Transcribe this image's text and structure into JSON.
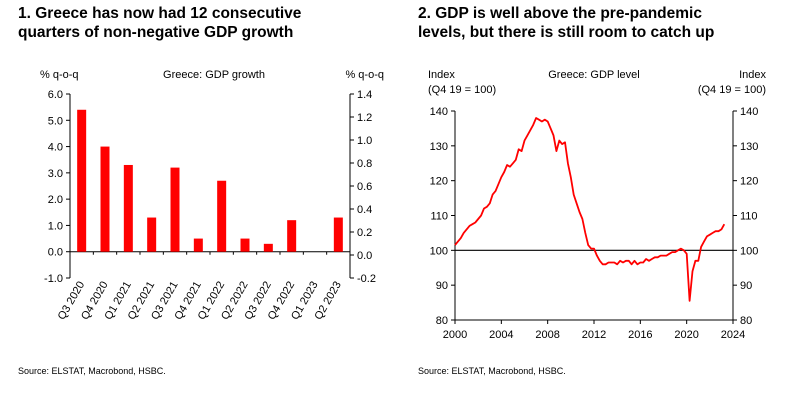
{
  "left_panel": {
    "title_line1": "1. Greece has now had 12 consecutive",
    "title_line2": "quarters of non-negative GDP growth",
    "source": "Source: ELSTAT, Macrobond, HSBC."
  },
  "right_panel": {
    "title_line1": "2. GDP is well above the pre-pandemic",
    "title_line2": "levels, but there is still room to catch up",
    "source": "Source: ELSTAT, Macrobond, HSBC."
  },
  "chart_data": [
    {
      "type": "bar",
      "title": "Greece: GDP growth",
      "ylabel_left": "% q-o-q",
      "ylabel_right": "% q-o-q",
      "ylim": [
        -1.0,
        6.0
      ],
      "ylim_right": [
        -0.2,
        1.4
      ],
      "yticks_left": [
        "-1.0",
        "0.0",
        "1.0",
        "2.0",
        "3.0",
        "4.0",
        "5.0",
        "6.0"
      ],
      "yticks_right": [
        "-0.2",
        "0.0",
        "0.2",
        "0.4",
        "0.6",
        "0.8",
        "1.0",
        "1.2",
        "1.4"
      ],
      "categories": [
        "Q3 2020",
        "Q4 2020",
        "Q1 2021",
        "Q2 2021",
        "Q3 2021",
        "Q4 2021",
        "Q1 2022",
        "Q2 2022",
        "Q3 2022",
        "Q4 2022",
        "Q1 2023",
        "Q2 2023"
      ],
      "values": [
        5.4,
        4.0,
        3.3,
        1.3,
        3.2,
        0.5,
        2.7,
        0.5,
        0.3,
        1.2,
        0.0,
        1.3
      ],
      "color": "#ff0000",
      "grid": false,
      "legend": "none"
    },
    {
      "type": "line",
      "title": "Greece: GDP level",
      "ylabel_left_line1": "Index",
      "ylabel_left_line2": "(Q4 19 = 100)",
      "ylabel_right_line1": "Index",
      "ylabel_right_line2": "(Q4 19 = 100)",
      "xlim": [
        2000,
        2024
      ],
      "ylim": [
        80,
        140
      ],
      "xticks": [
        "2000",
        "2004",
        "2008",
        "2012",
        "2016",
        "2020",
        "2024"
      ],
      "yticks": [
        "80",
        "90",
        "100",
        "110",
        "120",
        "130",
        "140"
      ],
      "reference_line": 100,
      "color": "#ff0000",
      "grid": false,
      "legend": "none",
      "x": [
        2000.0,
        2000.25,
        2000.5,
        2000.75,
        2001.0,
        2001.25,
        2001.5,
        2001.75,
        2002.0,
        2002.25,
        2002.5,
        2002.75,
        2003.0,
        2003.25,
        2003.5,
        2003.75,
        2004.0,
        2004.25,
        2004.5,
        2004.75,
        2005.0,
        2005.25,
        2005.5,
        2005.75,
        2006.0,
        2006.25,
        2006.5,
        2006.75,
        2007.0,
        2007.25,
        2007.5,
        2007.75,
        2008.0,
        2008.25,
        2008.5,
        2008.75,
        2009.0,
        2009.25,
        2009.5,
        2009.75,
        2010.0,
        2010.25,
        2010.5,
        2010.75,
        2011.0,
        2011.25,
        2011.5,
        2011.75,
        2012.0,
        2012.25,
        2012.5,
        2012.75,
        2013.0,
        2013.25,
        2013.5,
        2013.75,
        2014.0,
        2014.25,
        2014.5,
        2014.75,
        2015.0,
        2015.25,
        2015.5,
        2015.75,
        2016.0,
        2016.25,
        2016.5,
        2016.75,
        2017.0,
        2017.25,
        2017.5,
        2017.75,
        2018.0,
        2018.25,
        2018.5,
        2018.75,
        2019.0,
        2019.25,
        2019.5,
        2019.75,
        2020.0,
        2020.25,
        2020.5,
        2020.75,
        2021.0,
        2021.25,
        2021.5,
        2021.75,
        2022.0,
        2022.25,
        2022.5,
        2022.75,
        2023.0,
        2023.25
      ],
      "y": [
        101.5,
        102.5,
        103.5,
        105.0,
        106.0,
        107.0,
        107.5,
        108.0,
        109.0,
        110.0,
        112.0,
        112.5,
        113.5,
        116.0,
        117.0,
        119.0,
        121.0,
        122.5,
        124.5,
        124.0,
        125.0,
        126.0,
        129.0,
        128.5,
        131.5,
        133.0,
        134.5,
        136.0,
        138.0,
        137.5,
        137.0,
        137.5,
        137.0,
        135.0,
        133.0,
        128.5,
        131.5,
        130.5,
        131.0,
        125.0,
        121.0,
        116.0,
        113.5,
        111.0,
        109.0,
        105.0,
        101.5,
        100.5,
        100.5,
        98.5,
        97.0,
        96.0,
        96.0,
        96.5,
        96.5,
        96.5,
        96.0,
        97.0,
        96.5,
        97.0,
        97.0,
        96.0,
        97.0,
        96.0,
        96.5,
        96.5,
        97.5,
        97.0,
        97.5,
        98.0,
        98.0,
        98.5,
        98.5,
        98.5,
        99.0,
        99.5,
        99.5,
        100.0,
        100.5,
        100.0,
        99.0,
        85.5,
        94.0,
        97.0,
        97.0,
        101.0,
        102.5,
        104.0,
        104.5,
        105.0,
        105.5,
        105.5,
        106.0,
        107.5
      ]
    }
  ]
}
